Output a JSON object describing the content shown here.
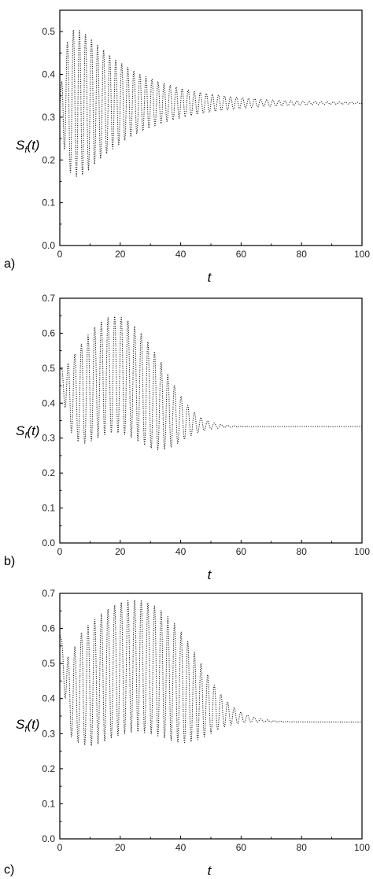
{
  "chart_data": [
    {
      "type": "line",
      "panel_label": "a)",
      "xlabel": "t",
      "ylabel_main": "S",
      "ylabel_sub": "f",
      "ylabel_suffix": "(t)",
      "xlim": [
        0,
        100
      ],
      "ylim": [
        0.0,
        0.55
      ],
      "xticks": [
        0,
        20,
        40,
        60,
        80,
        100
      ],
      "xtick_labels": [
        "0",
        "20",
        "40",
        "60",
        "80",
        "100"
      ],
      "yticks": [
        0.0,
        0.1,
        0.2,
        0.3,
        0.4,
        0.5
      ],
      "ytick_labels": [
        "0.0",
        "0.1",
        "0.2",
        "0.3",
        "0.4",
        "0.5"
      ],
      "grid": false,
      "series": [
        {
          "values_note": "",
          "line_style": "dotted",
          "asymptote": 0.333,
          "start_value": 0.333,
          "initial_amplitude": 0.19,
          "amp_growth_tau": 2.5,
          "amp_decay_tau": 20,
          "period": 2.0,
          "envelope_upper_peak": [
            6,
            0.525
          ],
          "envelope_lower_min": [
            3,
            0.11
          ]
        }
      ]
    },
    {
      "type": "line",
      "panel_label": "b)",
      "xlabel": "t",
      "ylabel_main": "S",
      "ylabel_sub": "f",
      "ylabel_suffix": "(t)",
      "xlim": [
        0,
        100
      ],
      "ylim": [
        0.0,
        0.7
      ],
      "xticks": [
        0,
        20,
        40,
        60,
        80,
        100
      ],
      "xtick_labels": [
        "0",
        "20",
        "40",
        "60",
        "80",
        "100"
      ],
      "yticks": [
        0.0,
        0.1,
        0.2,
        0.3,
        0.4,
        0.5,
        0.6,
        0.7
      ],
      "ytick_labels": [
        "0.0",
        "0.1",
        "0.2",
        "0.3",
        "0.4",
        "0.5",
        "0.6",
        "0.7"
      ],
      "grid": false,
      "series": [
        {
          "line_style": "dotted",
          "start_value": 0.5,
          "asymptote": 0.333,
          "mean_hump": 0.15,
          "mean_hump_center": 18,
          "mean_hump_width": 16,
          "amplitude_peak": 0.17,
          "amp_growth_tau": 4,
          "amp_decay_center": 38,
          "amp_decay_width": 14,
          "period": 2.2,
          "envelope_upper_peak": [
            22,
            0.635
          ],
          "envelope_lower_min": [
            3,
            0.18
          ]
        }
      ]
    },
    {
      "type": "line",
      "panel_label": "c)",
      "xlabel": "t",
      "ylabel_main": "S",
      "ylabel_sub": "f",
      "ylabel_suffix": "(t)",
      "xlim": [
        0,
        100
      ],
      "ylim": [
        0.0,
        0.7
      ],
      "xticks": [
        0,
        20,
        40,
        60,
        80,
        100
      ],
      "xtick_labels": [
        "0",
        "20",
        "40",
        "60",
        "80",
        "100"
      ],
      "yticks": [
        0.0,
        0.1,
        0.2,
        0.3,
        0.4,
        0.5,
        0.6,
        0.7
      ],
      "ytick_labels": [
        "0.0",
        "0.1",
        "0.2",
        "0.3",
        "0.4",
        "0.5",
        "0.6",
        "0.7"
      ],
      "grid": false,
      "series": [
        {
          "line_style": "dotted",
          "start_value": 0.6,
          "asymptote": 0.333,
          "initial_dip": [
            3,
            0.555
          ],
          "mean_hump": 0.16,
          "mean_hump_center": 25,
          "mean_hump_width": 22,
          "amplitude_peak": 0.19,
          "amp_growth_tau": 4,
          "amp_decay_center": 48,
          "amp_decay_width": 16,
          "period": 2.2,
          "envelope_upper_peak": [
            32,
            0.655
          ],
          "envelope_lower_min": [
            3,
            0.2
          ]
        }
      ]
    }
  ]
}
